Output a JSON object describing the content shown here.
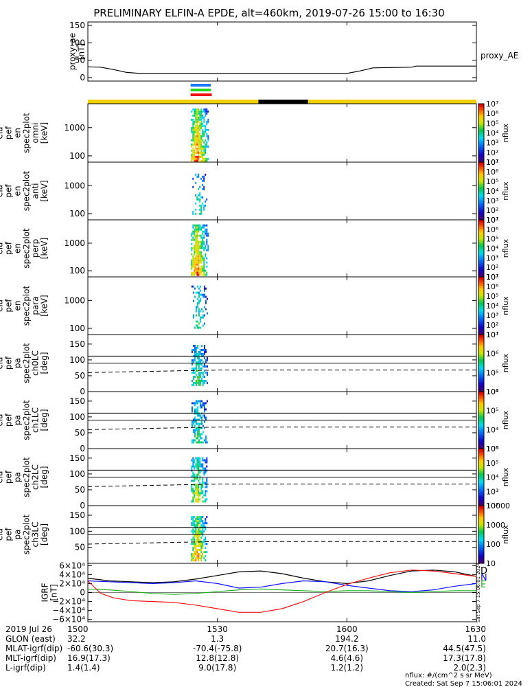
{
  "title": "PRELIMINARY ELFIN-A EPDE, alt=460km, 2019-07-26 15:00 to 16:30",
  "footer": {
    "units": "nflux: #/(cm^2 s sr MeV)",
    "created": "Created: Sat Sep  7 15:06:01 2024",
    "side_stamp": "Sat Sep  7 15:06:01 2024"
  },
  "time_axis": {
    "range_min": [
      0,
      90
    ],
    "ticks_min": [
      0,
      30,
      60,
      90
    ],
    "tick_labels": [
      "1500",
      "1530",
      "1600",
      "1630"
    ]
  },
  "info_rows": [
    {
      "label": "2019 Jul 26",
      "values": [
        "1500",
        "1530",
        "1600",
        "1630"
      ]
    },
    {
      "label": "GLON (east)",
      "values": [
        "32.2",
        "1.3",
        "194.2",
        "11.0"
      ]
    },
    {
      "label": "MLAT-igrf(dip)",
      "values": [
        "-60.6(30.3)",
        "-70.4(-75.8)",
        "20.7(16.3)",
        "44.5(47.5)"
      ]
    },
    {
      "label": "MLT-igrf(dip)",
      "values": [
        "16.9(17.3)",
        "12.8(12.8)",
        "4.6(4.6)",
        "17.3(17.8)"
      ]
    },
    {
      "label": "L-igrf(dip)",
      "values": [
        "1.4(1.4)",
        "9.0(17.8)",
        "1.2(1.2)",
        "2.0(2.3)"
      ]
    }
  ],
  "status_bars": [
    {
      "color": "#1e78ff",
      "start_min": 23.8,
      "end_min": 28.5
    },
    {
      "color": "#22d622",
      "start_min": 23.8,
      "end_min": 28.5
    },
    {
      "color": "#ee1111",
      "start_min": 23.8,
      "end_min": 28.7
    }
  ],
  "orbit_bar": {
    "colors": {
      "day": "#f0d000",
      "eclipse": "#000000"
    },
    "segments": [
      {
        "state": "day",
        "start_min": 0,
        "end_min": 39.5
      },
      {
        "state": "eclipse",
        "start_min": 39.5,
        "end_min": 51
      },
      {
        "state": "day",
        "start_min": 51,
        "end_min": 90
      }
    ]
  },
  "panels": [
    {
      "id": "proxy_ae",
      "type": "line",
      "ylabel": [
        "proxy_ae",
        "[nT]"
      ],
      "y_ticks": [
        0,
        50,
        100,
        150
      ],
      "ylim": [
        -10,
        160
      ],
      "series_name": "proxy_AE",
      "series": [
        {
          "color": "#000000",
          "x": [
            0,
            3,
            6,
            9,
            12,
            15,
            30,
            60,
            63,
            66,
            70,
            75,
            76,
            80,
            90
          ],
          "y": [
            31,
            30,
            23,
            15,
            12,
            12,
            12,
            12,
            19,
            28,
            29,
            30,
            33,
            33,
            33
          ]
        }
      ]
    },
    {
      "id": "en_omni",
      "type": "spec",
      "ylabel": [
        "ela",
        "pef",
        "en",
        "spec2plot",
        "omni",
        "[keV]"
      ],
      "y_log": true,
      "ylim": [
        60,
        7000
      ],
      "y_ticks": [
        100,
        1000
      ],
      "y_tick_labels": [
        "100",
        "1000"
      ],
      "cbar": {
        "label": "nflux",
        "min_exp": 1,
        "max_exp": 7
      },
      "spec": {
        "start_min": 23.9,
        "end_min": 27.8,
        "peak_min": 25.2,
        "fill": 0.95,
        "top": 0.92,
        "bottom": 0.03,
        "strength": 0.9
      }
    },
    {
      "id": "en_anti",
      "type": "spec",
      "ylabel": [
        "ela",
        "pef",
        "en",
        "spec2plot",
        "anti",
        "[keV]"
      ],
      "y_log": true,
      "ylim": [
        60,
        7000
      ],
      "y_ticks": [
        100,
        1000
      ],
      "y_tick_labels": [
        "100",
        "1000"
      ],
      "cbar": {
        "label": "nflux",
        "min_exp": 1,
        "max_exp": 7
      },
      "spec": {
        "start_min": 24.2,
        "end_min": 27.6,
        "peak_min": 25.6,
        "fill": 0.3,
        "top": 0.8,
        "bottom": 0.1,
        "strength": 0.55
      }
    },
    {
      "id": "en_perp",
      "type": "spec",
      "ylabel": [
        "ela",
        "pef",
        "en",
        "spec2plot",
        "perp",
        "[keV]"
      ],
      "y_log": true,
      "ylim": [
        60,
        7000
      ],
      "y_ticks": [
        100,
        1000
      ],
      "y_tick_labels": [
        "100",
        "1000"
      ],
      "cbar": {
        "label": "nflux",
        "min_exp": 1,
        "max_exp": 7
      },
      "spec": {
        "start_min": 23.9,
        "end_min": 27.8,
        "peak_min": 25.2,
        "fill": 0.95,
        "top": 0.92,
        "bottom": 0.03,
        "strength": 0.9
      }
    },
    {
      "id": "en_para",
      "type": "spec",
      "ylabel": [
        "ela",
        "pef",
        "en",
        "spec2plot",
        "para",
        "[keV]"
      ],
      "y_log": true,
      "ylim": [
        60,
        7000
      ],
      "y_ticks": [
        100,
        1000
      ],
      "y_tick_labels": [
        "100",
        "1000"
      ],
      "cbar": {
        "label": "nflux",
        "min_exp": 1,
        "max_exp": 7
      },
      "spec": {
        "start_min": 24.0,
        "end_min": 27.6,
        "peak_min": 25.4,
        "fill": 0.35,
        "top": 0.85,
        "bottom": 0.1,
        "strength": 0.55
      }
    },
    {
      "id": "pa_ch0",
      "type": "spec",
      "ylabel": [
        "ela",
        "pef",
        "pa",
        "spec2plot",
        "ch0LC",
        "[deg]"
      ],
      "y_log": false,
      "ylim": [
        0,
        180
      ],
      "y_ticks": [
        0,
        50,
        100,
        150
      ],
      "y_tick_labels": [
        "0",
        "50",
        "100",
        "150"
      ],
      "hlines": [
        90,
        112
      ],
      "dashed": {
        "x": [
          0,
          30,
          90
        ],
        "y": [
          60,
          68,
          68
        ]
      },
      "cbar": {
        "label": "nflux",
        "min_exp": 4,
        "max_exp": 7
      },
      "spec": {
        "start_min": 24.0,
        "end_min": 27.6,
        "peak_min": 25.3,
        "fill": 0.8,
        "top": 0.82,
        "bottom": 0.1,
        "strength": 0.6
      }
    },
    {
      "id": "pa_ch1",
      "type": "spec",
      "ylabel": [
        "ela",
        "pef",
        "pa",
        "spec2plot",
        "ch1LC",
        "[deg]"
      ],
      "y_log": false,
      "ylim": [
        0,
        180
      ],
      "y_ticks": [
        0,
        50,
        100,
        150
      ],
      "y_tick_labels": [
        "0",
        "50",
        "100",
        "150"
      ],
      "hlines": [
        90,
        112
      ],
      "dashed": {
        "x": [
          0,
          30,
          90
        ],
        "y": [
          60,
          68,
          68
        ]
      },
      "cbar": {
        "label": "nflux",
        "min_exp": 3,
        "max_exp": 6
      },
      "spec": {
        "start_min": 24.0,
        "end_min": 27.6,
        "peak_min": 25.3,
        "fill": 0.75,
        "top": 0.85,
        "bottom": 0.1,
        "strength": 0.55
      }
    },
    {
      "id": "pa_ch2",
      "type": "spec",
      "ylabel": [
        "ela",
        "pef",
        "pa",
        "spec2plot",
        "ch2LC",
        "[deg]"
      ],
      "y_log": false,
      "ylim": [
        0,
        180
      ],
      "y_ticks": [
        0,
        50,
        100,
        150
      ],
      "y_tick_labels": [
        "0",
        "50",
        "100",
        "150"
      ],
      "hlines": [
        90,
        112
      ],
      "dashed": {
        "x": [
          0,
          30,
          90
        ],
        "y": [
          60,
          68,
          68
        ]
      },
      "cbar": {
        "label": "nflux",
        "min_exp": 2,
        "max_exp": 6
      },
      "spec": {
        "start_min": 23.9,
        "end_min": 27.7,
        "peak_min": 25.2,
        "fill": 0.85,
        "top": 0.85,
        "bottom": 0.08,
        "strength": 0.7
      }
    },
    {
      "id": "pa_ch3",
      "type": "spec",
      "ylabel": [
        "ela",
        "pef",
        "pa",
        "spec2plot",
        "ch3LC",
        "[deg]"
      ],
      "y_log": false,
      "ylim": [
        0,
        180
      ],
      "y_ticks": [
        50,
        100,
        150
      ],
      "y_tick_labels": [
        "50",
        "100",
        "150"
      ],
      "hlines": [
        90,
        112
      ],
      "dashed": {
        "x": [
          0,
          30,
          90
        ],
        "y": [
          60,
          68,
          68
        ]
      },
      "cbar": {
        "label": "nflux",
        "lin_ticks": [
          10,
          100,
          1000,
          10000
        ],
        "lin_tick_labels": [
          "10",
          "100",
          "1000",
          "10000"
        ],
        "min_exp": 1,
        "max_exp": 4
      },
      "spec": {
        "start_min": 23.9,
        "end_min": 27.7,
        "peak_min": 25.3,
        "fill": 0.9,
        "top": 0.82,
        "bottom": 0.05,
        "strength": 0.85
      }
    },
    {
      "id": "igrf",
      "type": "line",
      "ylabel": [
        "IGRF",
        "[nT]"
      ],
      "ylim": [
        -65000,
        65000
      ],
      "y_ticks": [
        -60000,
        -40000,
        -20000,
        0,
        20000,
        40000,
        60000
      ],
      "y_tick_labels": [
        "−6×10⁴",
        "−4×10⁴",
        "−2×10⁴",
        "0",
        "2×10⁴",
        "4×10⁴",
        "6×10⁴"
      ],
      "series": [
        {
          "name": "D",
          "color": "#000000",
          "x": [
            0,
            5,
            10,
            15,
            20,
            25,
            30,
            35,
            40,
            45,
            50,
            55,
            60,
            65,
            70,
            75,
            80,
            85,
            90
          ],
          "y": [
            32000,
            26000,
            24000,
            22000,
            24000,
            30000,
            38000,
            46000,
            48000,
            42000,
            32000,
            24000,
            20000,
            26000,
            38000,
            48000,
            50000,
            46000,
            36000
          ]
        },
        {
          "name": "N",
          "color": "#1010ff",
          "x": [
            0,
            5,
            10,
            15,
            20,
            25,
            30,
            35,
            40,
            45,
            50,
            55,
            60,
            65,
            70,
            75,
            80,
            85,
            90
          ],
          "y": [
            26000,
            24000,
            22000,
            20000,
            22000,
            26000,
            20000,
            10000,
            12000,
            20000,
            26000,
            24000,
            16000,
            10000,
            4000,
            2000,
            6000,
            14000,
            20000
          ]
        },
        {
          "name": "E",
          "color": "#20b020",
          "x": [
            0,
            5,
            10,
            15,
            20,
            25,
            30,
            35,
            40,
            45,
            50,
            55,
            60,
            65,
            70,
            75,
            80,
            85,
            90
          ],
          "y": [
            8000,
            6000,
            2000,
            -2000,
            -4000,
            -2000,
            2000,
            6000,
            8000,
            6000,
            4000,
            2000,
            4000,
            4000,
            2000,
            0,
            2000,
            4000,
            4000
          ]
        },
        {
          "name": "",
          "color": "#ee1111",
          "x": [
            0,
            3,
            6,
            10,
            15,
            20,
            25,
            30,
            35,
            40,
            45,
            50,
            55,
            60,
            65,
            70,
            75,
            80,
            85,
            90
          ],
          "y": [
            26000,
            -2000,
            -12000,
            -18000,
            -20000,
            -22000,
            -28000,
            -36000,
            -44000,
            -44000,
            -36000,
            -20000,
            0,
            18000,
            32000,
            44000,
            50000,
            48000,
            42000,
            36000
          ]
        }
      ]
    }
  ],
  "chart_data": {
    "type": "line",
    "title": "PRELIMINARY ELFIN-A EPDE, alt=460km, 2019-07-26 15:00 to 16:30",
    "x_range_minutes": [
      0,
      90
    ],
    "x_tick_labels": [
      "1500",
      "1530",
      "1600",
      "1630"
    ],
    "series": [
      {
        "name": "proxy_AE",
        "x": [
          0,
          3,
          6,
          9,
          12,
          15,
          30,
          60,
          63,
          66,
          70,
          75,
          76,
          80,
          90
        ],
        "y": [
          31,
          30,
          23,
          15,
          12,
          12,
          12,
          12,
          19,
          28,
          29,
          30,
          33,
          33,
          33
        ]
      },
      {
        "name": "D",
        "x": [
          0,
          5,
          10,
          15,
          20,
          25,
          30,
          35,
          40,
          45,
          50,
          55,
          60,
          65,
          70,
          75,
          80,
          85,
          90
        ],
        "y": [
          32000,
          26000,
          24000,
          22000,
          24000,
          30000,
          38000,
          46000,
          48000,
          42000,
          32000,
          24000,
          20000,
          26000,
          38000,
          48000,
          50000,
          46000,
          36000
        ]
      },
      {
        "name": "N",
        "x": [
          0,
          5,
          10,
          15,
          20,
          25,
          30,
          35,
          40,
          45,
          50,
          55,
          60,
          65,
          70,
          75,
          80,
          85,
          90
        ],
        "y": [
          26000,
          24000,
          22000,
          20000,
          22000,
          26000,
          20000,
          10000,
          12000,
          20000,
          26000,
          24000,
          16000,
          10000,
          4000,
          2000,
          6000,
          14000,
          20000
        ]
      },
      {
        "name": "E",
        "x": [
          0,
          5,
          10,
          15,
          20,
          25,
          30,
          35,
          40,
          45,
          50,
          55,
          60,
          65,
          70,
          75,
          80,
          85,
          90
        ],
        "y": [
          8000,
          6000,
          2000,
          -2000,
          -4000,
          -2000,
          2000,
          6000,
          8000,
          6000,
          4000,
          2000,
          4000,
          4000,
          2000,
          0,
          2000,
          4000,
          4000
        ]
      }
    ]
  }
}
